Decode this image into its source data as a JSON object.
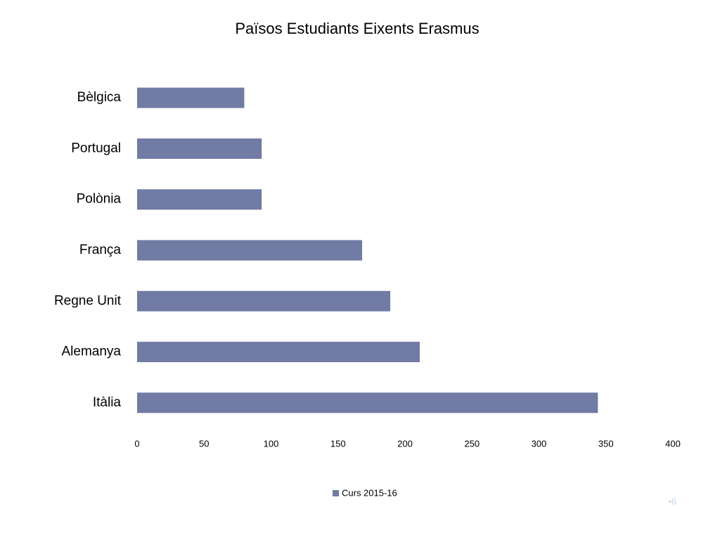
{
  "slide_number": "•6",
  "chart_data": {
    "type": "barh",
    "title": "Països Estudiants Eixents Erasmus",
    "categories": [
      "Bèlgica",
      "Portugal",
      "Polònia",
      "França",
      "Regne Unit",
      "Alemanya",
      "Itàlia"
    ],
    "series": [
      {
        "name": "Curs 2015-16",
        "color": "#717ba3",
        "values": [
          80,
          93,
          93,
          168,
          189,
          211,
          344
        ]
      }
    ],
    "xlim": [
      0,
      400
    ],
    "xticks": [
      0,
      50,
      100,
      150,
      200,
      250,
      300,
      350,
      400
    ],
    "grid": false,
    "legend": "bottom"
  }
}
